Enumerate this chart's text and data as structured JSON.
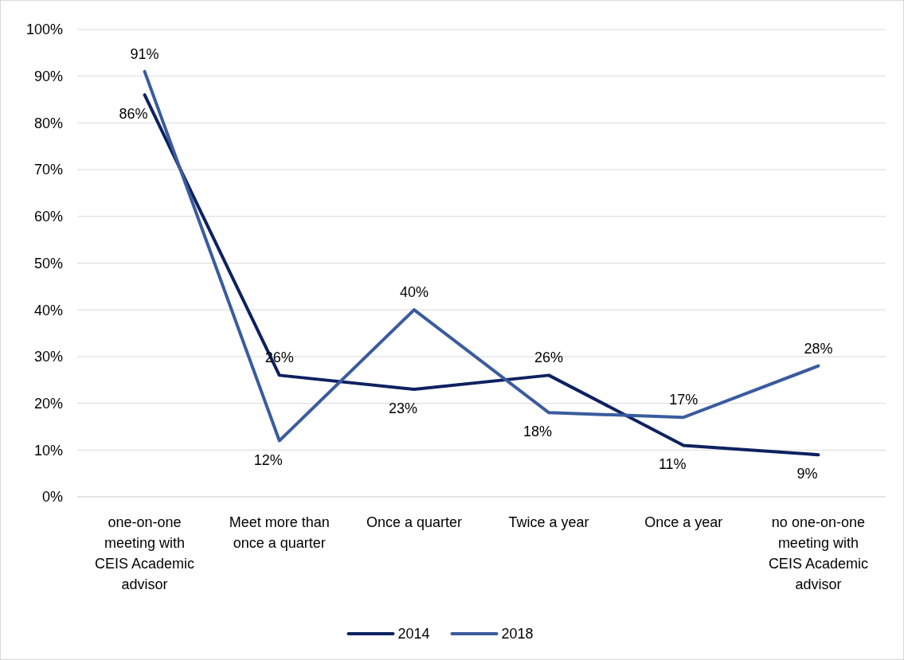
{
  "chart_data": {
    "type": "line",
    "categories": [
      "one-on-one meeting with CEIS Academic advisor",
      "Meet more than once a quarter",
      "Once a quarter",
      "Twice a year",
      "Once a year",
      "no one-on-one meeting with CEIS Academic advisor"
    ],
    "series": [
      {
        "name": "2014",
        "color": "#0e2160",
        "values": [
          86,
          26,
          23,
          26,
          11,
          9
        ],
        "value_labels": [
          "86%",
          "26%",
          "23%",
          "26%",
          "11%",
          "9%"
        ]
      },
      {
        "name": "2018",
        "color": "#3a5c9e",
        "values": [
          91,
          12,
          40,
          18,
          17,
          28
        ],
        "value_labels": [
          "91%",
          "12%",
          "40%",
          "18%",
          "17%",
          "28%"
        ]
      }
    ],
    "ylim": [
      0,
      100
    ],
    "yticks": [
      {
        "value": 0,
        "label": "0%"
      },
      {
        "value": 10,
        "label": "10%"
      },
      {
        "value": 20,
        "label": "20%"
      },
      {
        "value": 30,
        "label": "30%"
      },
      {
        "value": 40,
        "label": "40%"
      },
      {
        "value": 50,
        "label": "50%"
      },
      {
        "value": 60,
        "label": "60%"
      },
      {
        "value": 70,
        "label": "70%"
      },
      {
        "value": 80,
        "label": "80%"
      },
      {
        "value": 90,
        "label": "90%"
      },
      {
        "value": 100,
        "label": "100%"
      }
    ],
    "grid": "y",
    "legend": "bottom",
    "marker": "none",
    "line_style": "solid"
  }
}
